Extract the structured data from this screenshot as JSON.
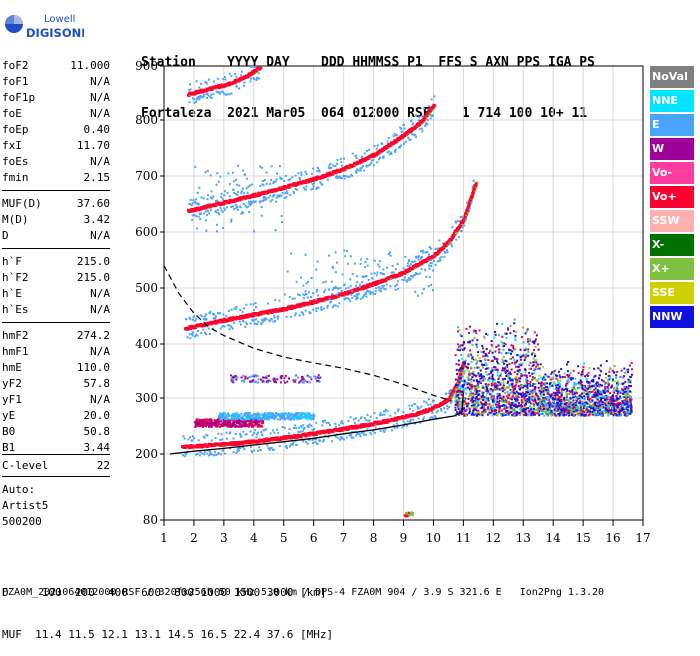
{
  "logo": {
    "line1": "Lowell",
    "line2": "DIGISONDE"
  },
  "header": {
    "labels": "Station    YYYY DAY    DDD HHMMSS P1  FFS S AXN PPS IGA PS",
    "values": "Fortaleza  2021 Mar05  064 012000 RSF    1 714 100 10+ 11"
  },
  "params": [
    {
      "k": "foF2",
      "v": "11.000"
    },
    {
      "k": "foF1",
      "v": "N/A"
    },
    {
      "k": "foF1p",
      "v": "N/A"
    },
    {
      "k": "foE",
      "v": "N/A"
    },
    {
      "k": "foEp",
      "v": "0.40"
    },
    {
      "k": "fxI",
      "v": "11.70"
    },
    {
      "k": "foEs",
      "v": "N/A"
    },
    {
      "k": "fmin",
      "v": "2.15"
    },
    {
      "k": "MUF(D)",
      "v": "37.60"
    },
    {
      "k": "M(D)",
      "v": "3.42"
    },
    {
      "k": "D",
      "v": "N/A"
    },
    {
      "k": "h`F",
      "v": "215.0"
    },
    {
      "k": "h`F2",
      "v": "215.0"
    },
    {
      "k": "h`E",
      "v": "N/A"
    },
    {
      "k": "h`Es",
      "v": "N/A"
    },
    {
      "k": "hmF2",
      "v": "274.2"
    },
    {
      "k": "hmF1",
      "v": "N/A"
    },
    {
      "k": "hmE",
      "v": "110.0"
    },
    {
      "k": "yF2",
      "v": "57.8"
    },
    {
      "k": "yF1",
      "v": "N/A"
    },
    {
      "k": "yE",
      "v": "20.0"
    },
    {
      "k": "B0",
      "v": "50.8"
    },
    {
      "k": "B1",
      "v": "3.44"
    },
    {
      "k": "C-level",
      "v": "22"
    }
  ],
  "autoscale": {
    "line1": "Auto:",
    "line2": "Artist5",
    "line3": "500200"
  },
  "legend": [
    {
      "label": "NoVal",
      "bg": "#808080",
      "fg": "#ffffff"
    },
    {
      "label": "NNE",
      "bg": "#00e5ff",
      "fg": "#ffffff"
    },
    {
      "label": "E",
      "bg": "#4aa3ff",
      "fg": "#ffffff"
    },
    {
      "label": "W",
      "bg": "#a0009a",
      "fg": "#ffffff"
    },
    {
      "label": "Vo-",
      "bg": "#ff3ca0",
      "fg": "#ffffff"
    },
    {
      "label": "Vo+",
      "bg": "#ff0030",
      "fg": "#ffffff"
    },
    {
      "label": "SSW",
      "bg": "#ffb0b0",
      "fg": "#ffffff"
    },
    {
      "label": "X-",
      "bg": "#007000",
      "fg": "#ffffff"
    },
    {
      "label": "X+",
      "bg": "#80c040",
      "fg": "#ffffff"
    },
    {
      "label": "SSE",
      "bg": "#d0d000",
      "fg": "#ffffff"
    },
    {
      "label": "NNW",
      "bg": "#1010e0",
      "fg": "#ffffff"
    }
  ],
  "chart_data": {
    "type": "scatter",
    "xlim": [
      1,
      17
    ],
    "ylim": [
      80,
      900
    ],
    "x_ticks": [
      "1",
      "2",
      "3",
      "4",
      "5",
      "6",
      "7",
      "8",
      "9",
      "10",
      "11",
      "12",
      "13",
      "14",
      "15",
      "16",
      "17"
    ],
    "y_ticks": [
      "80",
      "200",
      "300",
      "400",
      "500",
      "600",
      "700",
      "800",
      "900"
    ],
    "grid": true,
    "colors": {
      "vo_plus": "#ff0030",
      "x_plus": "#80c040",
      "e": "#4aa3ff",
      "w": "#a0009a",
      "nnw": "#1010e0",
      "nne": "#00e5ff",
      "sse": "#d0d000"
    },
    "traces": [
      {
        "name": "F trace",
        "x": [
          1.6,
          2.5,
          3.5,
          4.5,
          5.5,
          6.5,
          7.5,
          8.5,
          9.5,
          10.0,
          10.5,
          10.8,
          11.0
        ],
        "y": [
          215,
          218,
          222,
          228,
          235,
          243,
          252,
          262,
          275,
          285,
          300,
          330,
          370
        ]
      },
      {
        "name": "2F trace",
        "x": [
          1.7,
          3,
          4,
          5,
          6,
          7,
          8,
          9,
          10,
          10.5,
          11,
          11.4
        ],
        "y": [
          430,
          445,
          455,
          465,
          478,
          492,
          510,
          530,
          560,
          585,
          625,
          690
        ]
      },
      {
        "name": "3F trace",
        "x": [
          1.8,
          3,
          4,
          5,
          6,
          7,
          8,
          9,
          9.6,
          10.0
        ],
        "y": [
          640,
          655,
          668,
          682,
          697,
          715,
          740,
          775,
          800,
          830
        ]
      },
      {
        "name": "4F trace",
        "x": [
          1.8,
          2.5,
          3.2,
          3.8,
          4.2
        ],
        "y": [
          850,
          860,
          870,
          885,
          900
        ]
      }
    ],
    "profile_solid": {
      "x": [
        1.2,
        2,
        3,
        4,
        5,
        6,
        7,
        8,
        9,
        10,
        10.7,
        10.95,
        11.0
      ],
      "y": [
        200,
        205,
        210,
        216,
        222,
        228,
        236,
        243,
        252,
        262,
        268,
        275,
        310
      ]
    },
    "profile_dashed": {
      "x": [
        1,
        1.5,
        2,
        2.5,
        3,
        4,
        5,
        6,
        7,
        8,
        9,
        10,
        10.6
      ],
      "y": [
        540,
        490,
        455,
        430,
        415,
        392,
        376,
        365,
        355,
        342,
        325,
        305,
        295
      ]
    }
  },
  "footer": {
    "line1": "D     100  200  400  600  800 1000 1500 3000 [km]",
    "line2": "MUF  11.4 11.5 12.1 13.1 14.5 16.5 22.4 37.6 [MHz]",
    "line3": "FZA0M_2021064012000.RSF / 320fx256h 50 kHz 5.0 km / DPS-4 FZA0M 904 / 3.9 S 321.6 E   Ion2Png 1.3.20"
  }
}
